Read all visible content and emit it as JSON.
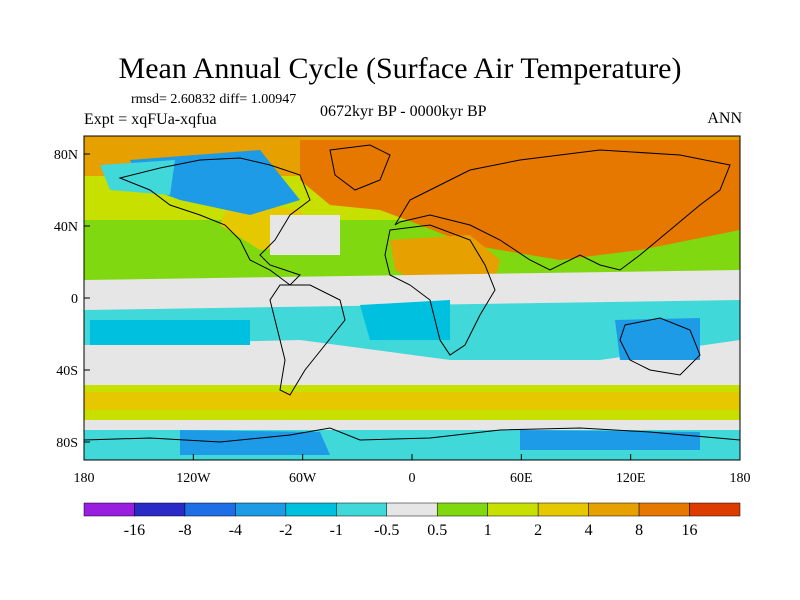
{
  "title": "Mean Annual Cycle (Surface Air Temperature)",
  "stats": "rmsd= 2.60832 diff= 1.00947",
  "experiment": "Expt = xqFUa-xqfua",
  "period": "0672kyr BP - 0000kyr BP",
  "season": "ANN",
  "lon_ticks": [
    {
      "label": "180",
      "lon": -180
    },
    {
      "label": "120W",
      "lon": -120
    },
    {
      "label": "60W",
      "lon": -60
    },
    {
      "label": "0",
      "lon": 0
    },
    {
      "label": "60E",
      "lon": 60
    },
    {
      "label": "120E",
      "lon": 120
    },
    {
      "label": "180",
      "lon": 180
    }
  ],
  "lat_ticks": [
    {
      "label": "80N",
      "lat": 80
    },
    {
      "label": "40N",
      "lat": 40
    },
    {
      "label": "0",
      "lat": 0
    },
    {
      "label": "40S",
      "lat": -40
    },
    {
      "label": "80S",
      "lat": -80
    }
  ],
  "colorbar": {
    "colors": [
      "#9a1ee0",
      "#2a2ac8",
      "#1e6ee6",
      "#1e9be6",
      "#00c0e0",
      "#40d8d8",
      "#e6e6e6",
      "#80d810",
      "#c8e000",
      "#e6c800",
      "#e6a000",
      "#e67800",
      "#dc3c00"
    ],
    "labels": [
      "-16",
      "-8",
      "-4",
      "-2",
      "-1",
      "-0.5",
      "0.5",
      "1",
      "2",
      "4",
      "8",
      "16"
    ]
  },
  "colors": {
    "ocean_neutral": "#e6e6e6",
    "warm_light": "#80d810",
    "warm_mid": "#c8e000",
    "warm_orange": "#e6a000",
    "warm_deep": "#e67800",
    "cool_light": "#40d8d8",
    "cool_mid": "#00c0e0",
    "cool_blue": "#1e9be6",
    "coast": "#000000"
  }
}
